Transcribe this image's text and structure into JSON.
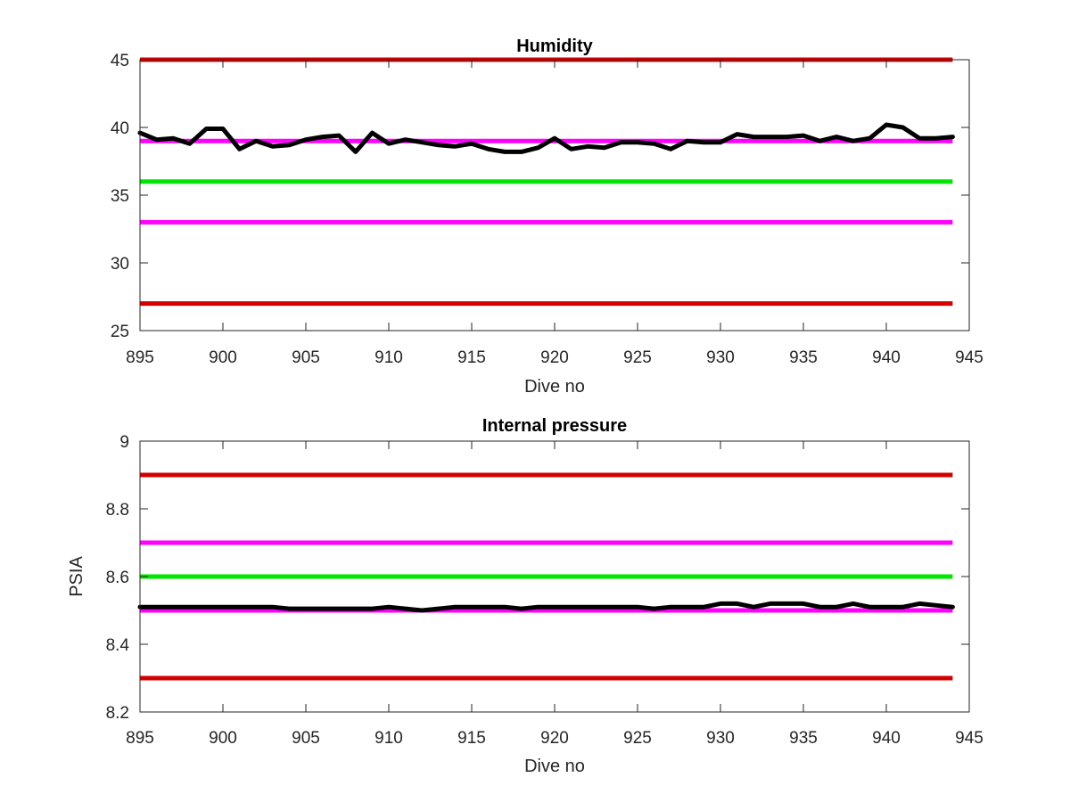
{
  "chart_data": [
    {
      "type": "line",
      "title": "Humidity",
      "xlabel": "Dive no",
      "ylabel": "",
      "xlim": [
        895,
        945
      ],
      "ylim": [
        25,
        45
      ],
      "xticks": [
        895,
        900,
        905,
        910,
        915,
        920,
        925,
        930,
        935,
        940,
        945
      ],
      "yticks": [
        25,
        30,
        35,
        40,
        45
      ],
      "grid": false,
      "thresholds": [
        {
          "value": 45,
          "color": "#d40000"
        },
        {
          "value": 39,
          "color": "#ff00ff"
        },
        {
          "value": 36,
          "color": "#00e600"
        },
        {
          "value": 33,
          "color": "#ff00ff"
        },
        {
          "value": 27,
          "color": "#d40000"
        }
      ],
      "threshold_xrange": [
        895,
        944
      ],
      "series": [
        {
          "color": "#000000",
          "x": [
            895,
            896,
            897,
            898,
            899,
            900,
            901,
            902,
            903,
            904,
            905,
            906,
            907,
            908,
            909,
            910,
            911,
            912,
            913,
            914,
            915,
            916,
            917,
            918,
            919,
            920,
            921,
            922,
            923,
            924,
            925,
            926,
            927,
            928,
            929,
            930,
            931,
            932,
            933,
            934,
            935,
            936,
            937,
            938,
            939,
            940,
            941,
            942,
            943,
            944
          ],
          "y": [
            39.6,
            39.1,
            39.2,
            38.8,
            39.9,
            39.9,
            38.4,
            39.0,
            38.6,
            38.7,
            39.1,
            39.3,
            39.4,
            38.2,
            39.6,
            38.8,
            39.1,
            38.9,
            38.7,
            38.6,
            38.8,
            38.4,
            38.2,
            38.2,
            38.5,
            39.2,
            38.4,
            38.6,
            38.5,
            38.9,
            38.9,
            38.8,
            38.4,
            39.0,
            38.9,
            38.9,
            39.5,
            39.3,
            39.3,
            39.3,
            39.4,
            39.0,
            39.3,
            39.0,
            39.2,
            40.2,
            40.0,
            39.2,
            39.2,
            39.3
          ]
        }
      ]
    },
    {
      "type": "line",
      "title": "Internal pressure",
      "xlabel": "Dive no",
      "ylabel": "PSIA",
      "xlim": [
        895,
        945
      ],
      "ylim": [
        8.2,
        9
      ],
      "xticks": [
        895,
        900,
        905,
        910,
        915,
        920,
        925,
        930,
        935,
        940,
        945
      ],
      "yticks": [
        8.2,
        8.4,
        8.6,
        8.8,
        9
      ],
      "grid": false,
      "thresholds": [
        {
          "value": 8.9,
          "color": "#d40000"
        },
        {
          "value": 8.7,
          "color": "#ff00ff"
        },
        {
          "value": 8.6,
          "color": "#00e600"
        },
        {
          "value": 8.5,
          "color": "#ff00ff"
        },
        {
          "value": 8.3,
          "color": "#d40000"
        }
      ],
      "threshold_xrange": [
        895,
        944
      ],
      "series": [
        {
          "color": "#000000",
          "x": [
            895,
            896,
            897,
            898,
            899,
            900,
            901,
            902,
            903,
            904,
            905,
            906,
            907,
            908,
            909,
            910,
            911,
            912,
            913,
            914,
            915,
            916,
            917,
            918,
            919,
            920,
            921,
            922,
            923,
            924,
            925,
            926,
            927,
            928,
            929,
            930,
            931,
            932,
            933,
            934,
            935,
            936,
            937,
            938,
            939,
            940,
            941,
            942,
            943,
            944
          ],
          "y": [
            8.51,
            8.51,
            8.51,
            8.51,
            8.51,
            8.51,
            8.51,
            8.51,
            8.51,
            8.505,
            8.505,
            8.505,
            8.505,
            8.505,
            8.505,
            8.51,
            8.505,
            8.5,
            8.505,
            8.51,
            8.51,
            8.51,
            8.51,
            8.505,
            8.51,
            8.51,
            8.51,
            8.51,
            8.51,
            8.51,
            8.51,
            8.505,
            8.51,
            8.51,
            8.51,
            8.52,
            8.52,
            8.51,
            8.52,
            8.52,
            8.52,
            8.51,
            8.51,
            8.52,
            8.51,
            8.51,
            8.51,
            8.52,
            8.515,
            8.51
          ]
        }
      ]
    }
  ]
}
